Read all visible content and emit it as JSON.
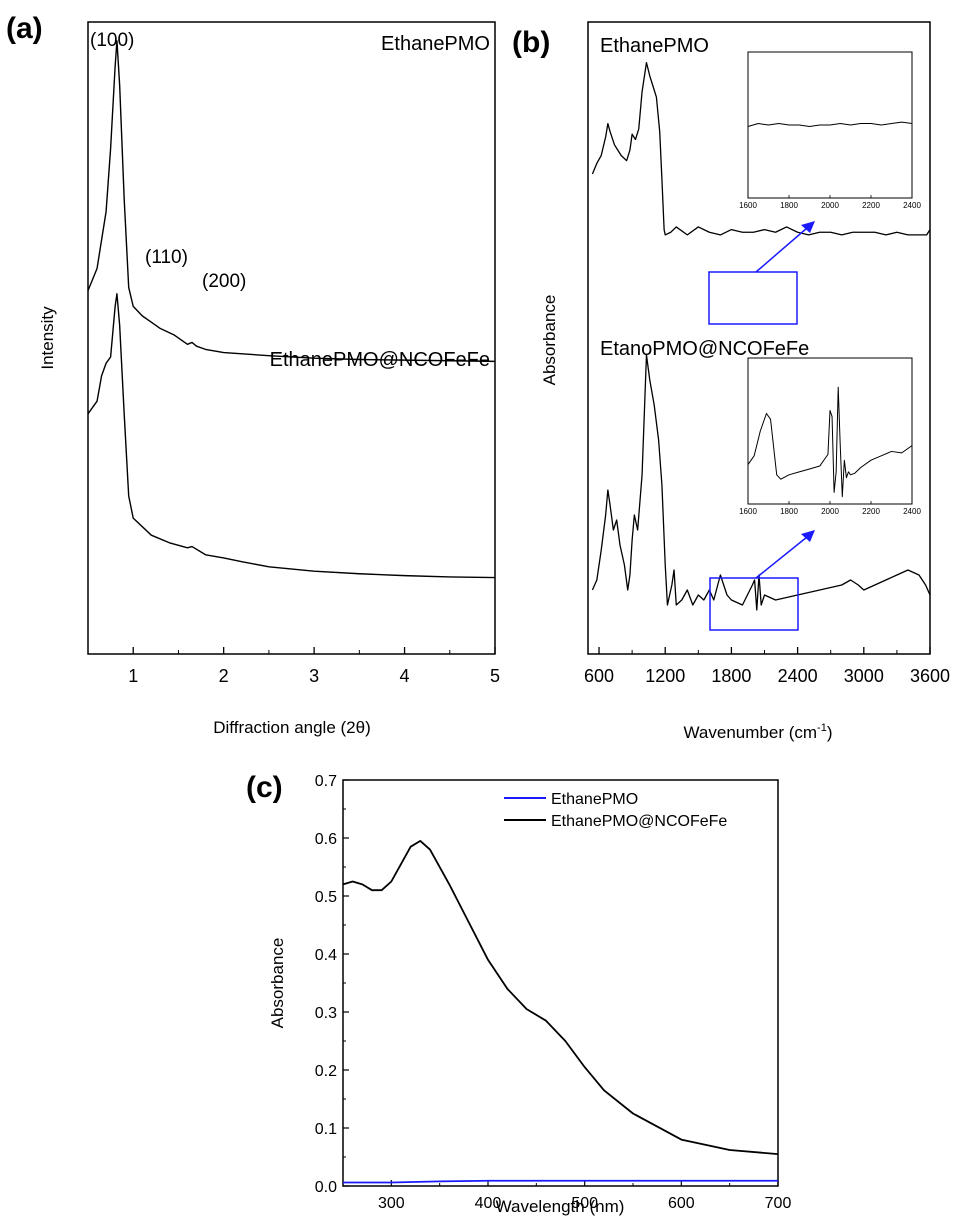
{
  "chart_data": [
    {
      "panel": "(a)",
      "type": "line",
      "xlabel": "Diffraction angle (2θ)",
      "ylabel": "Intensity",
      "xlim": [
        0.5,
        5
      ],
      "xticks": [
        1,
        2,
        3,
        4,
        5
      ],
      "yticks_shown": false,
      "series": [
        {
          "name": "EthanePMO",
          "x": [
            0.5,
            0.6,
            0.7,
            0.75,
            0.8,
            0.82,
            0.85,
            0.9,
            0.95,
            1.0,
            1.1,
            1.2,
            1.3,
            1.45,
            1.55,
            1.6,
            1.65,
            1.7,
            1.8,
            2.0,
            2.5,
            3.0,
            3.5,
            4.0,
            4.5,
            5.0
          ],
          "y": [
            0.575,
            0.61,
            0.7,
            0.8,
            0.93,
            0.97,
            0.9,
            0.72,
            0.58,
            0.55,
            0.535,
            0.525,
            0.515,
            0.505,
            0.495,
            0.49,
            0.493,
            0.487,
            0.482,
            0.477,
            0.472,
            0.468,
            0.466,
            0.465,
            0.464,
            0.463
          ]
        },
        {
          "name": "EthanePMO@NCOFeFe",
          "x": [
            0.5,
            0.6,
            0.65,
            0.7,
            0.75,
            0.8,
            0.82,
            0.85,
            0.9,
            0.95,
            1.0,
            1.2,
            1.4,
            1.6,
            1.65,
            1.8,
            2.0,
            2.2,
            2.5,
            3.0,
            3.5,
            4.0,
            4.5,
            5.0
          ],
          "y": [
            0.38,
            0.4,
            0.44,
            0.46,
            0.47,
            0.55,
            0.57,
            0.52,
            0.38,
            0.25,
            0.215,
            0.188,
            0.176,
            0.168,
            0.17,
            0.157,
            0.152,
            0.146,
            0.138,
            0.131,
            0.127,
            0.124,
            0.122,
            0.121
          ]
        }
      ],
      "annotations": [
        "(100)",
        "(110)",
        "(200)",
        "EthanePMO",
        "EthanePMO@NCOFeFe"
      ]
    },
    {
      "panel": "(b)",
      "type": "line",
      "xlabel": "Wavenumber (cm",
      "xlabel_sup": "-1",
      "xlabel_end": ")",
      "ylabel": "Absorbance",
      "xlim": [
        500,
        3600
      ],
      "xticks": [
        600,
        1200,
        1800,
        2400,
        3000,
        3600
      ],
      "yticks_shown": false,
      "series": [
        {
          "name": "EthanePMO",
          "x": [
            540,
            580,
            620,
            660,
            680,
            700,
            740,
            770,
            800,
            850,
            880,
            900,
            930,
            960,
            990,
            1030,
            1060,
            1090,
            1120,
            1150,
            1170,
            1190,
            1200,
            1250,
            1300,
            1400,
            1500,
            1600,
            1700,
            1800,
            1900,
            2000,
            2100,
            2200,
            2300,
            2400,
            2500,
            2600,
            2700,
            2800,
            2900,
            3000,
            3100,
            3200,
            3300,
            3400,
            3500,
            3570,
            3600
          ],
          "y": [
            0.57,
            0.61,
            0.64,
            0.71,
            0.76,
            0.73,
            0.68,
            0.66,
            0.64,
            0.62,
            0.66,
            0.72,
            0.7,
            0.74,
            0.88,
            0.99,
            0.94,
            0.9,
            0.86,
            0.73,
            0.55,
            0.36,
            0.34,
            0.35,
            0.37,
            0.34,
            0.37,
            0.35,
            0.34,
            0.36,
            0.35,
            0.35,
            0.36,
            0.35,
            0.37,
            0.35,
            0.34,
            0.35,
            0.35,
            0.34,
            0.35,
            0.35,
            0.35,
            0.34,
            0.35,
            0.34,
            0.34,
            0.34,
            0.36
          ]
        },
        {
          "name": "EtanoPMO@NCOFeFe",
          "x": [
            540,
            580,
            620,
            660,
            680,
            700,
            730,
            760,
            790,
            830,
            860,
            880,
            900,
            920,
            950,
            990,
            1030,
            1060,
            1100,
            1140,
            1170,
            1200,
            1220,
            1260,
            1280,
            1300,
            1350,
            1400,
            1450,
            1500,
            1550,
            1600,
            1640,
            1700,
            1760,
            1800,
            1900,
            1990,
            2010,
            2030,
            2050,
            2070,
            2100,
            2200,
            2400,
            2600,
            2800,
            2880,
            2950,
            3000,
            3100,
            3200,
            3300,
            3400,
            3500,
            3560,
            3600
          ],
          "y": [
            0.03,
            0.05,
            0.11,
            0.18,
            0.23,
            0.2,
            0.15,
            0.17,
            0.12,
            0.08,
            0.03,
            0.06,
            0.13,
            0.18,
            0.15,
            0.26,
            0.5,
            0.45,
            0.4,
            0.33,
            0.24,
            0.08,
            0.0,
            0.04,
            0.07,
            0.0,
            0.01,
            0.03,
            0.0,
            0.02,
            0.01,
            0.03,
            0.01,
            0.06,
            0.02,
            0.01,
            0.0,
            0.04,
            0.05,
            -0.01,
            0.06,
            0.0,
            0.02,
            0.01,
            0.02,
            0.03,
            0.04,
            0.05,
            0.04,
            0.03,
            0.04,
            0.05,
            0.06,
            0.07,
            0.06,
            0.04,
            0.02
          ]
        }
      ],
      "annotations": [
        "EthanePMO",
        "EtanoPMO@NCOFeFe"
      ],
      "insets": [
        {
          "xlim": [
            1600,
            2400
          ],
          "xticks": [
            1600,
            1800,
            2000,
            2200,
            2400
          ],
          "x": [
            1600,
            1650,
            1700,
            1750,
            1800,
            1850,
            1900,
            1950,
            2000,
            2050,
            2100,
            2150,
            2200,
            2250,
            2300,
            2350,
            2400
          ],
          "y": [
            0.49,
            0.51,
            0.5,
            0.51,
            0.5,
            0.5,
            0.49,
            0.5,
            0.5,
            0.51,
            0.5,
            0.51,
            0.51,
            0.5,
            0.51,
            0.52,
            0.51
          ]
        },
        {
          "xlim": [
            1600,
            2400
          ],
          "xticks": [
            1600,
            1800,
            2000,
            2200,
            2400
          ],
          "x": [
            1600,
            1630,
            1660,
            1690,
            1710,
            1740,
            1760,
            1800,
            1850,
            1900,
            1950,
            1990,
            2000,
            2010,
            2020,
            2030,
            2040,
            2050,
            2060,
            2070,
            2080,
            2090,
            2100,
            2120,
            2150,
            2200,
            2250,
            2300,
            2350,
            2380,
            2400
          ],
          "y": [
            0.27,
            0.33,
            0.5,
            0.62,
            0.58,
            0.2,
            0.17,
            0.2,
            0.22,
            0.24,
            0.26,
            0.34,
            0.64,
            0.6,
            0.08,
            0.22,
            0.8,
            0.4,
            0.05,
            0.3,
            0.18,
            0.22,
            0.2,
            0.21,
            0.25,
            0.3,
            0.33,
            0.36,
            0.35,
            0.38,
            0.4
          ]
        }
      ]
    },
    {
      "panel": "(c)",
      "type": "line",
      "xlabel": "Wavelength (nm)",
      "ylabel": "Absorbance",
      "xlim": [
        250,
        700
      ],
      "ylim": [
        0.0,
        0.7
      ],
      "xticks": [
        300,
        400,
        500,
        600,
        700
      ],
      "yticks": [
        0.0,
        0.1,
        0.2,
        0.3,
        0.4,
        0.5,
        0.6,
        0.7
      ],
      "legend_position": "top-right",
      "series": [
        {
          "name": "EthanePMO",
          "color": "#1a1aff",
          "x": [
            250,
            300,
            350,
            400,
            450,
            500,
            550,
            600,
            650,
            700
          ],
          "y": [
            0.006,
            0.006,
            0.008,
            0.009,
            0.009,
            0.009,
            0.009,
            0.009,
            0.009,
            0.009
          ]
        },
        {
          "name": "EthanePMO@NCOFeFe",
          "color": "#000000",
          "x": [
            250,
            260,
            270,
            280,
            290,
            300,
            310,
            320,
            330,
            340,
            360,
            380,
            400,
            420,
            440,
            460,
            480,
            500,
            520,
            550,
            600,
            650,
            700
          ],
          "y": [
            0.52,
            0.525,
            0.52,
            0.51,
            0.51,
            0.525,
            0.555,
            0.585,
            0.595,
            0.58,
            0.52,
            0.455,
            0.39,
            0.34,
            0.305,
            0.285,
            0.25,
            0.205,
            0.165,
            0.125,
            0.08,
            0.062,
            0.055
          ]
        }
      ]
    }
  ]
}
